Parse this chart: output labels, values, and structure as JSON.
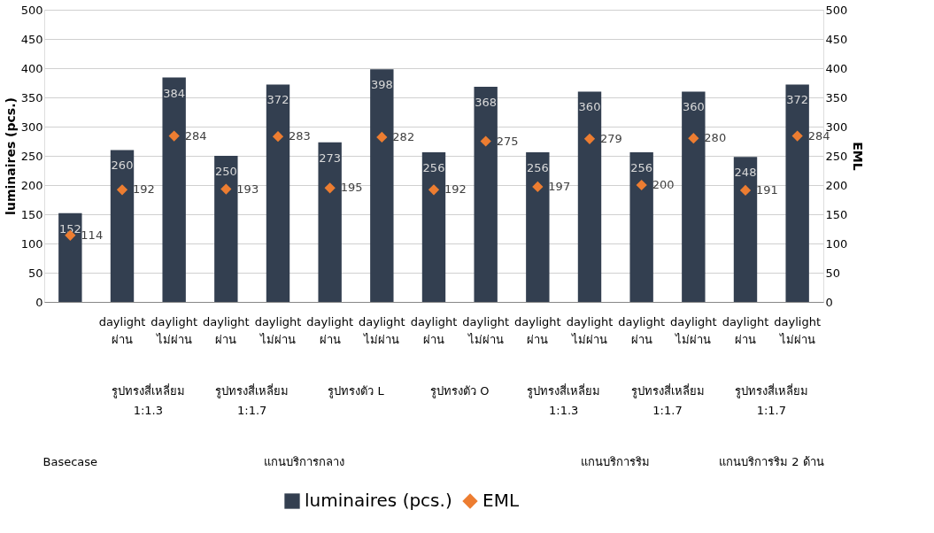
{
  "chart_data": {
    "type": "bar",
    "categories": [
      null,
      "daylight ผ่าน",
      "daylight ไม่ผ่าน",
      "daylight ผ่าน",
      "daylight ไม่ผ่าน",
      "daylight ผ่าน",
      "daylight ไม่ผ่าน",
      "daylight ผ่าน",
      "daylight ไม่ผ่าน",
      "daylight ผ่าน",
      "daylight ไม่ผ่าน",
      "daylight ผ่าน",
      "daylight ไม่ผ่าน",
      "daylight ผ่าน",
      "daylight ไม่ผ่าน"
    ],
    "series": [
      {
        "name": "luminaires (pcs.)",
        "color": "#333f50",
        "values": [
          152,
          260,
          384,
          250,
          372,
          273,
          398,
          256,
          368,
          256,
          360,
          256,
          360,
          248,
          372
        ]
      },
      {
        "name": "EML",
        "type": "scatter",
        "axis": "y2",
        "marker": "diamond",
        "color": "#ed7d31",
        "values": [
          114,
          192,
          284,
          193,
          283,
          195,
          282,
          192,
          275,
          197,
          279,
          200,
          280,
          191,
          284
        ]
      }
    ],
    "ylabel": "luminaires  (pcs.)",
    "y2label": "EML",
    "ylim": [
      0,
      500
    ],
    "yticks": [
      0,
      50,
      100,
      150,
      200,
      250,
      300,
      350,
      400,
      450,
      500
    ],
    "y2lim": [
      0,
      500
    ],
    "y2ticks": [
      0,
      50,
      100,
      150,
      200,
      250,
      300,
      350,
      400,
      450,
      500
    ],
    "grid": "y",
    "legend": "bottom",
    "data_labels": true,
    "annotations": [
      "รูปทรงสี่เหลี่ยม\n1:1.3",
      "รูปทรงสี่เหลี่ยม\n1:1.7",
      "รูปทรงตัว L",
      "รูปทรงตัว O",
      "รูปทรงสี่เหลี่ยม\n1:1.3",
      "รูปทรงสี่เหลี่ยม\n1:1.7",
      "รูปทรงสี่เหลี่ยม\n1:1.7",
      "Basecase",
      "แกนบริการกลาง",
      "แกนบริการริม",
      "แกนบริการริม 2 ด้าน"
    ]
  }
}
